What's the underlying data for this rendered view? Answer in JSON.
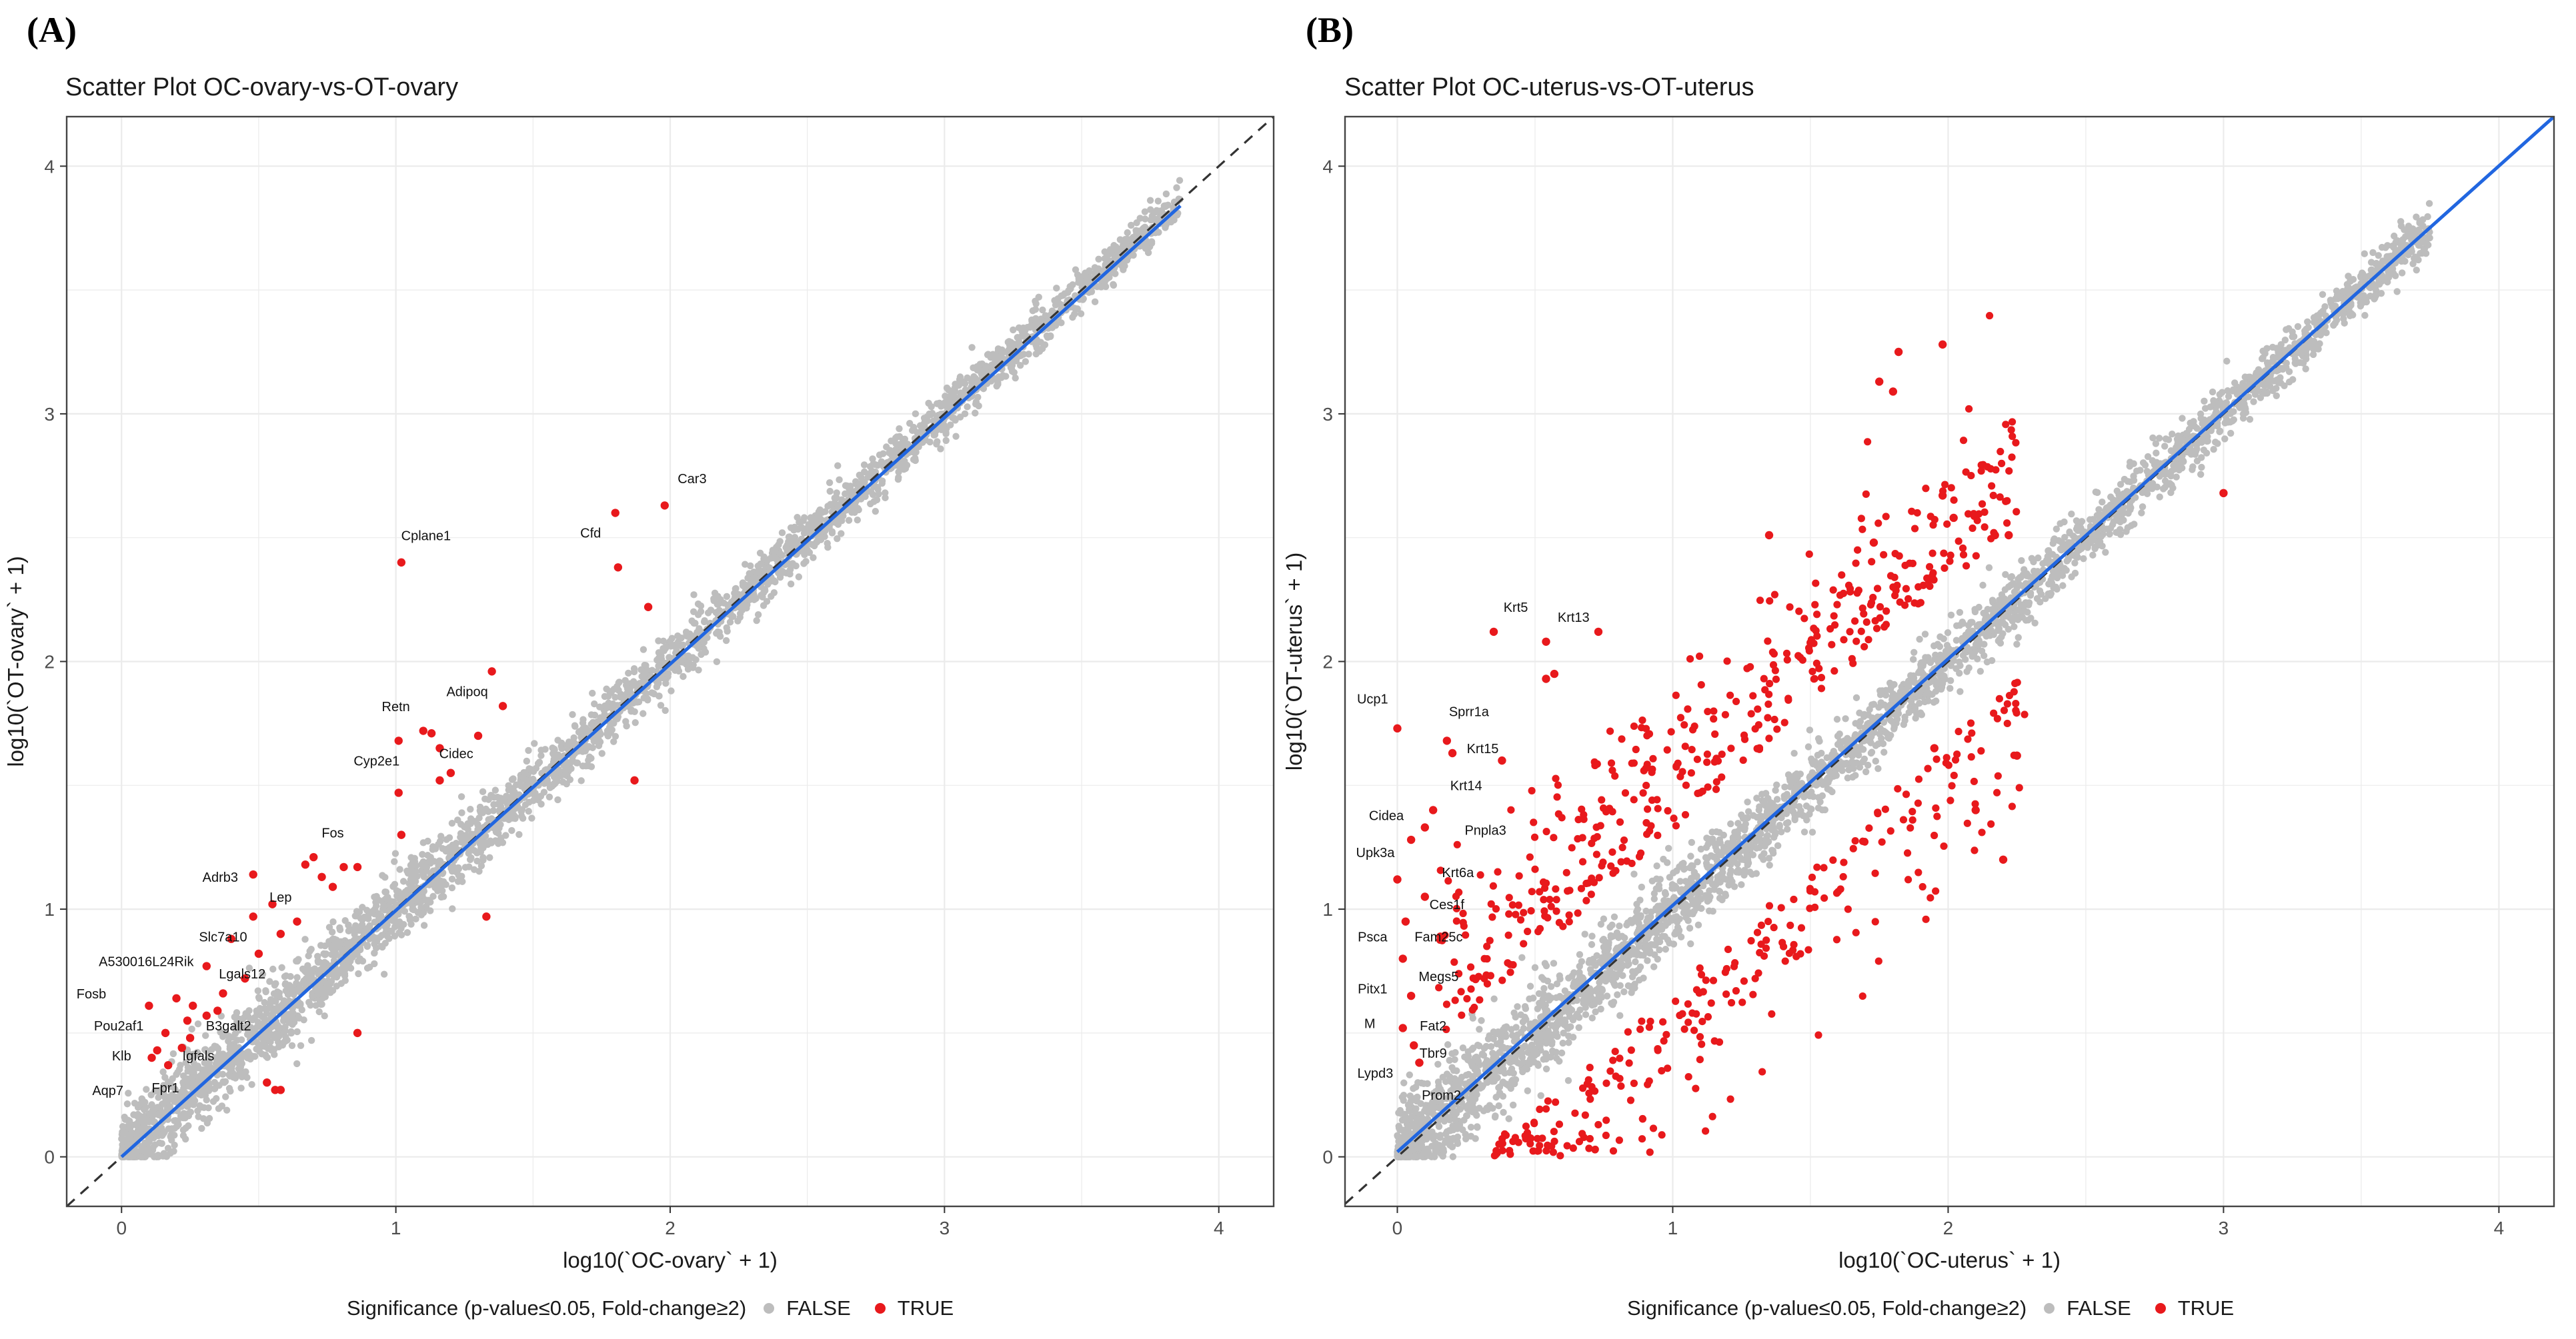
{
  "panels": [
    {
      "label": "(A)",
      "title": "Scatter Plot OC-ovary-vs-OT-ovary",
      "xlabel": "log10(`OC-ovary` + 1)",
      "ylabel": "log10(`OT-ovary` + 1)",
      "legend": {
        "title": "Significance (p-value≤0.05, Fold-change≥2)",
        "false_label": "FALSE",
        "true_label": "TRUE"
      }
    },
    {
      "label": "(B)",
      "title": "Scatter Plot OC-uterus-vs-OT-uterus",
      "xlabel": "log10(`OC-uterus` + 1)",
      "ylabel": "log10(`OT-uterus` + 1)",
      "legend": {
        "title": "Significance (p-value≤0.05, Fold-change≥2)",
        "false_label": "FALSE",
        "true_label": "TRUE"
      }
    }
  ],
  "colors": {
    "nonsig": "#bdbdbd",
    "sig": "#e8191c",
    "fit": "#2166e0",
    "fit_dark": "#10309a",
    "diag": "#333333",
    "panel_border": "#444444",
    "grid": "#ebebeb"
  },
  "chart_data": [
    {
      "type": "scatter",
      "title": "Scatter Plot OC-ovary-vs-OT-ovary",
      "xlabel": "log10(`OC-ovary` + 1)",
      "ylabel": "log10(`OT-ovary` + 1)",
      "xlim": [
        -0.2,
        4.2
      ],
      "ylim": [
        -0.2,
        4.2
      ],
      "xticks": [
        0,
        1,
        2,
        3,
        4
      ],
      "yticks": [
        0,
        1,
        2,
        3,
        4
      ],
      "grid": true,
      "legend_position": "bottom",
      "nonsig_cloud": {
        "x_max": 3.86,
        "spread": 0.22
      },
      "fit_line": {
        "x": [
          0,
          3.86
        ],
        "y": [
          0.0,
          3.84
        ]
      },
      "diagonal": {
        "x": [
          -0.2,
          4.2
        ],
        "y": [
          -0.2,
          4.2
        ]
      },
      "significant": [
        {
          "x": 1.02,
          "y": 2.4
        },
        {
          "x": 1.8,
          "y": 2.6
        },
        {
          "x": 1.98,
          "y": 2.63
        },
        {
          "x": 1.81,
          "y": 2.38
        },
        {
          "x": 1.92,
          "y": 2.22
        },
        {
          "x": 1.35,
          "y": 1.96
        },
        {
          "x": 1.39,
          "y": 1.82
        },
        {
          "x": 1.3,
          "y": 1.7
        },
        {
          "x": 1.1,
          "y": 1.72
        },
        {
          "x": 1.13,
          "y": 1.71
        },
        {
          "x": 1.16,
          "y": 1.65
        },
        {
          "x": 1.01,
          "y": 1.68
        },
        {
          "x": 1.2,
          "y": 1.55
        },
        {
          "x": 1.16,
          "y": 1.52
        },
        {
          "x": 1.01,
          "y": 1.47
        },
        {
          "x": 1.87,
          "y": 1.52
        },
        {
          "x": 0.7,
          "y": 1.21
        },
        {
          "x": 0.67,
          "y": 1.18
        },
        {
          "x": 0.81,
          "y": 1.17
        },
        {
          "x": 0.86,
          "y": 1.17
        },
        {
          "x": 0.73,
          "y": 1.13
        },
        {
          "x": 0.77,
          "y": 1.09
        },
        {
          "x": 1.02,
          "y": 1.3
        },
        {
          "x": 0.48,
          "y": 1.14
        },
        {
          "x": 0.55,
          "y": 1.02
        },
        {
          "x": 0.48,
          "y": 0.97
        },
        {
          "x": 0.58,
          "y": 0.9
        },
        {
          "x": 0.64,
          "y": 0.95
        },
        {
          "x": 0.4,
          "y": 0.88
        },
        {
          "x": 0.31,
          "y": 0.77
        },
        {
          "x": 0.45,
          "y": 0.72
        },
        {
          "x": 0.37,
          "y": 0.66
        },
        {
          "x": 0.26,
          "y": 0.61
        },
        {
          "x": 0.2,
          "y": 0.64
        },
        {
          "x": 0.1,
          "y": 0.61
        },
        {
          "x": 0.24,
          "y": 0.55
        },
        {
          "x": 0.31,
          "y": 0.57
        },
        {
          "x": 0.35,
          "y": 0.59
        },
        {
          "x": 0.16,
          "y": 0.5
        },
        {
          "x": 0.25,
          "y": 0.48
        },
        {
          "x": 0.22,
          "y": 0.44
        },
        {
          "x": 0.13,
          "y": 0.43
        },
        {
          "x": 0.11,
          "y": 0.4
        },
        {
          "x": 0.17,
          "y": 0.37
        },
        {
          "x": 0.53,
          "y": 0.3
        },
        {
          "x": 0.56,
          "y": 0.27
        },
        {
          "x": 0.58,
          "y": 0.27
        },
        {
          "x": 0.86,
          "y": 0.5
        },
        {
          "x": 1.33,
          "y": 0.97
        },
        {
          "x": 0.5,
          "y": 0.82
        }
      ],
      "gene_labels": [
        {
          "text": "Car3",
          "x": 2.08,
          "y": 2.72
        },
        {
          "text": "Cfd",
          "x": 1.71,
          "y": 2.5
        },
        {
          "text": "Cplane1",
          "x": 1.11,
          "y": 2.49
        },
        {
          "text": "Adipoq",
          "x": 1.26,
          "y": 1.86
        },
        {
          "text": "Retn",
          "x": 1.0,
          "y": 1.8
        },
        {
          "text": "Cidec",
          "x": 1.22,
          "y": 1.61
        },
        {
          "text": "Cyp2e1",
          "x": 0.93,
          "y": 1.58
        },
        {
          "text": "Fos",
          "x": 0.77,
          "y": 1.29
        },
        {
          "text": "Adrb3",
          "x": 0.36,
          "y": 1.11
        },
        {
          "text": "Lep",
          "x": 0.58,
          "y": 1.03
        },
        {
          "text": "Slc7a10",
          "x": 0.37,
          "y": 0.87
        },
        {
          "text": "A530016L24Rik",
          "x": 0.09,
          "y": 0.77
        },
        {
          "text": "Lgals12",
          "x": 0.44,
          "y": 0.72
        },
        {
          "text": "Fosb",
          "x": -0.11,
          "y": 0.64
        },
        {
          "text": "B3galt2",
          "x": 0.39,
          "y": 0.51
        },
        {
          "text": "Pou2af1",
          "x": -0.01,
          "y": 0.51
        },
        {
          "text": "Igfals",
          "x": 0.28,
          "y": 0.39
        },
        {
          "text": "Klb",
          "x": 0.0,
          "y": 0.39
        },
        {
          "text": "Aqp7",
          "x": -0.05,
          "y": 0.25
        },
        {
          "text": "Fpr1",
          "x": 0.16,
          "y": 0.26
        }
      ]
    },
    {
      "type": "scatter",
      "title": "Scatter Plot OC-uterus-vs-OT-uterus",
      "xlabel": "log10(`OC-uterus` + 1)",
      "ylabel": "log10(`OT-uterus` + 1)",
      "xlim": [
        -0.19,
        4.2
      ],
      "ylim": [
        -0.2,
        4.2
      ],
      "xticks": [
        0,
        1,
        2,
        3,
        4
      ],
      "yticks": [
        0,
        1,
        2,
        3,
        4
      ],
      "grid": true,
      "legend_position": "bottom",
      "nonsig_cloud": {
        "x_max": 3.75,
        "spread": 0.26
      },
      "fit_line": {
        "x": [
          0,
          4.2
        ],
        "y": [
          0.02,
          4.2
        ]
      },
      "diagonal": {
        "x": [
          -0.19,
          4.2
        ],
        "y": [
          -0.19,
          4.2
        ]
      },
      "significant": [
        {
          "x": 1.82,
          "y": 3.25
        },
        {
          "x": 1.98,
          "y": 3.28
        },
        {
          "x": 1.75,
          "y": 3.13
        },
        {
          "x": 1.8,
          "y": 3.09
        },
        {
          "x": 1.98,
          "y": 2.67
        },
        {
          "x": 2.02,
          "y": 2.58
        },
        {
          "x": 3.0,
          "y": 2.68
        },
        {
          "x": 1.35,
          "y": 2.51
        },
        {
          "x": 1.73,
          "y": 2.48
        },
        {
          "x": 2.17,
          "y": 2.51
        },
        {
          "x": 2.22,
          "y": 2.51
        },
        {
          "x": 0.35,
          "y": 2.12
        },
        {
          "x": 0.54,
          "y": 2.08
        },
        {
          "x": 0.57,
          "y": 1.95
        },
        {
          "x": 0.54,
          "y": 1.93
        },
        {
          "x": 0.73,
          "y": 2.12
        },
        {
          "x": 0.0,
          "y": 1.73
        },
        {
          "x": 0.18,
          "y": 1.68
        },
        {
          "x": 0.2,
          "y": 1.63
        },
        {
          "x": 0.38,
          "y": 1.6
        },
        {
          "x": 0.13,
          "y": 1.4
        },
        {
          "x": 0.1,
          "y": 1.33
        },
        {
          "x": 0.05,
          "y": 1.28
        },
        {
          "x": 0.0,
          "y": 1.12
        },
        {
          "x": 0.1,
          "y": 1.05
        },
        {
          "x": 0.03,
          "y": 0.95
        },
        {
          "x": 0.02,
          "y": 0.8
        },
        {
          "x": 0.05,
          "y": 0.65
        },
        {
          "x": 0.02,
          "y": 0.52
        },
        {
          "x": 0.06,
          "y": 0.45
        },
        {
          "x": 0.08,
          "y": 0.38
        },
        {
          "x": 2.25,
          "y": 1.62
        },
        {
          "x": 2.1,
          "y": 1.4
        },
        {
          "x": 1.95,
          "y": 1.65
        },
        {
          "x": 2.2,
          "y": 1.2
        }
      ],
      "sig_clouds": [
        {
          "side": "up",
          "x_min": 0.15,
          "x_max": 2.25,
          "count": 420
        },
        {
          "side": "down",
          "x_min": 0.35,
          "x_max": 2.3,
          "count": 260
        }
      ],
      "gene_labels": [
        {
          "text": "Krt5",
          "x": 0.43,
          "y": 2.2
        },
        {
          "text": "Krt13",
          "x": 0.64,
          "y": 2.16
        },
        {
          "text": "Ucp1",
          "x": -0.09,
          "y": 1.83
        },
        {
          "text": "Sprr1a",
          "x": 0.26,
          "y": 1.78
        },
        {
          "text": "Krt15",
          "x": 0.31,
          "y": 1.63
        },
        {
          "text": "Krt14",
          "x": 0.25,
          "y": 1.48
        },
        {
          "text": "Cidea",
          "x": -0.04,
          "y": 1.36
        },
        {
          "text": "Pnpla3",
          "x": 0.32,
          "y": 1.3
        },
        {
          "text": "Upk3a",
          "x": -0.08,
          "y": 1.21
        },
        {
          "text": "Krt6a",
          "x": 0.22,
          "y": 1.13
        },
        {
          "text": "Ces1f",
          "x": 0.18,
          "y": 1.0
        },
        {
          "text": "Psca",
          "x": -0.09,
          "y": 0.87
        },
        {
          "text": "Fam25c",
          "x": 0.15,
          "y": 0.87
        },
        {
          "text": "Megs5",
          "x": 0.15,
          "y": 0.71
        },
        {
          "text": "Pitx1",
          "x": -0.09,
          "y": 0.66
        },
        {
          "text": "M",
          "x": -0.1,
          "y": 0.52
        },
        {
          "text": "Fat2",
          "x": 0.13,
          "y": 0.51
        },
        {
          "text": "Tbr9",
          "x": 0.13,
          "y": 0.4
        },
        {
          "text": "Lypd3",
          "x": -0.08,
          "y": 0.32
        },
        {
          "text": "Prom2",
          "x": 0.16,
          "y": 0.23
        }
      ]
    }
  ]
}
